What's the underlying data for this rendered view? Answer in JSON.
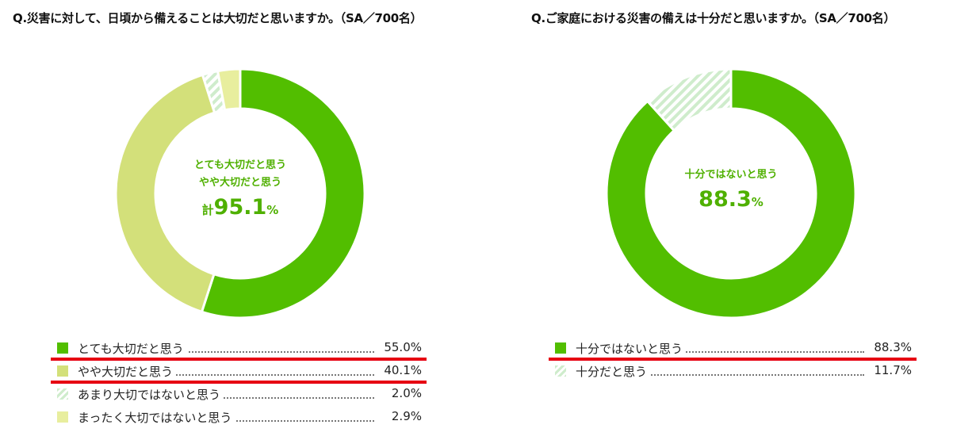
{
  "chart_data": [
    {
      "type": "pie",
      "title": "Q.災害に対して、日頃から備えることは大切だと思いますか。（SA／700名）",
      "categories": [
        "とても大切だと思う",
        "やや大切だと思う",
        "あまり大切ではないと思う",
        "まったく大切ではないと思う"
      ],
      "values": [
        55.0,
        40.1,
        2.0,
        2.9
      ],
      "value_labels": [
        "55.0%",
        "40.1%",
        "2.0%",
        "2.9%"
      ],
      "colors": [
        "#52be00",
        "#d3e07a",
        "hatch",
        "#e8ee9e"
      ],
      "highlighted": [
        "とても大切だと思う",
        "やや大切だと思う"
      ],
      "center_label_lines": [
        "とても大切だと思う",
        "やや大切だと思う"
      ],
      "center_total_prefix": "計",
      "center_total_value": "95.1",
      "center_total_unit": "%",
      "legend_position": "bottom"
    },
    {
      "type": "pie",
      "title": "Q.ご家庭における災害の備えは十分だと思いますか。（SA／700名）",
      "categories": [
        "十分ではないと思う",
        "十分だと思う"
      ],
      "values": [
        88.3,
        11.7
      ],
      "value_labels": [
        "88.3%",
        "11.7%"
      ],
      "colors": [
        "#52be00",
        "hatch"
      ],
      "highlighted": [
        "十分ではないと思う"
      ],
      "center_label_lines": [
        "十分ではないと思う"
      ],
      "center_total_prefix": "",
      "center_total_value": "88.3",
      "center_total_unit": "%",
      "legend_position": "bottom"
    }
  ]
}
